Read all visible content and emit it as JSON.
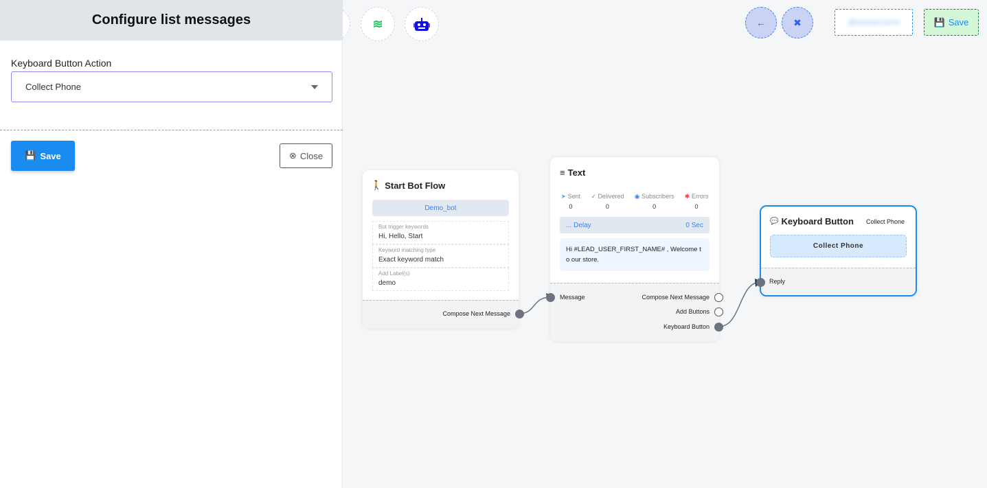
{
  "panel": {
    "title": "Configure list messages",
    "field_label": "Keyboard Button Action",
    "selected": "Collect Phone",
    "save": "Save",
    "close": "Close"
  },
  "toolbar": {
    "save": "Save",
    "account_placeholder": "@botusername",
    "icons": [
      "stack-icon",
      "robot-icon",
      "arrow-left-icon",
      "compress-icon"
    ]
  },
  "start_node": {
    "title": "Start Bot Flow",
    "bot_name": "Demo_bot",
    "fields": [
      {
        "label": "Bot trigger keywords",
        "value": "Hi, Hello, Start"
      },
      {
        "label": "Keyword matching type",
        "value": "Exact keyword match"
      },
      {
        "label": "Add Label(s)",
        "value": "demo"
      }
    ],
    "output": "Compose Next Message"
  },
  "text_node": {
    "title": "Text",
    "stats": [
      {
        "label": "Sent",
        "value": "0"
      },
      {
        "label": "Delivered",
        "value": "0"
      },
      {
        "label": "Subscribers",
        "value": "0"
      },
      {
        "label": "Errors",
        "value": "0"
      }
    ],
    "delay_label": "... Delay",
    "delay_value": "0 Sec",
    "message": "Hi  #LEAD_USER_FIRST_NAME# , Welcome to our store.",
    "input": "Message",
    "outputs": [
      "Compose Next Message",
      "Add Buttons",
      "Keyboard Button"
    ]
  },
  "kb_node": {
    "title": "Keyboard Button",
    "type": "Collect Phone",
    "button": "Collect Phone",
    "input": "Reply"
  },
  "colors": {
    "primary": "#1a8cf0",
    "header": "#e1e5ea",
    "node_selected": "#1a8cf0",
    "save_green": "#d4f7d8"
  }
}
